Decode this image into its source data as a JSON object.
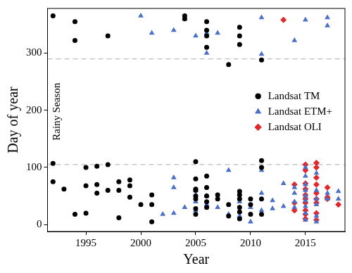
{
  "chart_data": {
    "type": "scatter",
    "x_label": "Year",
    "y_label": "Day of year",
    "annotations": [
      "Rainy Season"
    ],
    "hlines": [
      105,
      290
    ],
    "xlim": [
      1991.5,
      2018.6
    ],
    "ylim": [
      -12,
      378
    ],
    "xticks": [
      1995,
      2000,
      2005,
      2010,
      2015
    ],
    "yticks": [
      0,
      100,
      200,
      300
    ],
    "grid": false,
    "legend": "right",
    "series": [
      {
        "name": "Landsat TM",
        "color": "#000000",
        "marker": "circle",
        "x": [
          1992,
          1994,
          1994,
          1997,
          2004,
          2004,
          2006,
          2006,
          2006,
          2006,
          2008,
          2009,
          2009,
          2009,
          2011,
          1992,
          1992,
          1993,
          1994,
          1995,
          1995,
          1995,
          1996,
          1996,
          1996,
          1997,
          1997,
          1998,
          1998,
          1998,
          1999,
          1999,
          1999,
          2000,
          2001,
          2001,
          2001,
          2005,
          2005,
          2005,
          2005,
          2005,
          2005,
          2005,
          2005,
          2006,
          2006,
          2006,
          2006,
          2006,
          2007,
          2007,
          2008,
          2008,
          2009,
          2009,
          2009,
          2009,
          2009,
          2009,
          2010,
          2010,
          2010,
          2011,
          2011,
          2011,
          2011
        ],
        "values": [
          365,
          355,
          322,
          330,
          365,
          360,
          355,
          340,
          330,
          310,
          280,
          345,
          330,
          315,
          288,
          107,
          75,
          62,
          18,
          100,
          68,
          20,
          102,
          70,
          55,
          105,
          60,
          75,
          60,
          12,
          78,
          68,
          48,
          35,
          52,
          35,
          5,
          110,
          80,
          62,
          60,
          50,
          45,
          28,
          18,
          85,
          65,
          50,
          40,
          30,
          52,
          45,
          35,
          15,
          58,
          52,
          45,
          30,
          22,
          10,
          45,
          35,
          18,
          112,
          100,
          45,
          18
        ]
      },
      {
        "name": "Landsat ETM+",
        "color": "#4a6fc8",
        "marker": "triangle",
        "x": [
          2000,
          2001,
          2003,
          2004,
          2005,
          2006,
          2006,
          2007,
          2011,
          2011,
          2014,
          2015,
          2017,
          2017,
          2002,
          2003,
          2003,
          2003,
          2004,
          2005,
          2005,
          2005,
          2005,
          2006,
          2006,
          2007,
          2008,
          2008,
          2009,
          2009,
          2010,
          2010,
          2011,
          2011,
          2011,
          2012,
          2012,
          2013,
          2013,
          2014,
          2014,
          2014,
          2014,
          2015,
          2015,
          2015,
          2015,
          2015,
          2015,
          2015,
          2015,
          2015,
          2016,
          2016,
          2016,
          2016,
          2016,
          2016,
          2017,
          2017,
          2018,
          2018
        ],
        "values": [
          365,
          335,
          340,
          360,
          330,
          300,
          335,
          335,
          362,
          298,
          322,
          358,
          362,
          348,
          18,
          20,
          65,
          82,
          30,
          60,
          52,
          40,
          25,
          50,
          35,
          30,
          95,
          18,
          40,
          15,
          30,
          5,
          55,
          95,
          25,
          42,
          28,
          32,
          72,
          65,
          55,
          40,
          30,
          100,
          85,
          70,
          60,
          50,
          42,
          32,
          20,
          8,
          90,
          60,
          45,
          35,
          15,
          5,
          55,
          45,
          58,
          45
        ]
      },
      {
        "name": "Landsat OLI",
        "color": "#e0282c",
        "marker": "diamond",
        "x": [
          2013,
          2014,
          2014,
          2014,
          2015,
          2015,
          2015,
          2015,
          2015,
          2015,
          2015,
          2015,
          2015,
          2015,
          2016,
          2016,
          2016,
          2016,
          2016,
          2016,
          2016,
          2016,
          2016,
          2017,
          2017,
          2017,
          2018
        ],
        "values": [
          358,
          70,
          38,
          25,
          105,
          95,
          72,
          62,
          52,
          45,
          38,
          25,
          18,
          10,
          108,
          100,
          82,
          70,
          55,
          45,
          38,
          20,
          8,
          65,
          48,
          45,
          35
        ]
      }
    ]
  }
}
